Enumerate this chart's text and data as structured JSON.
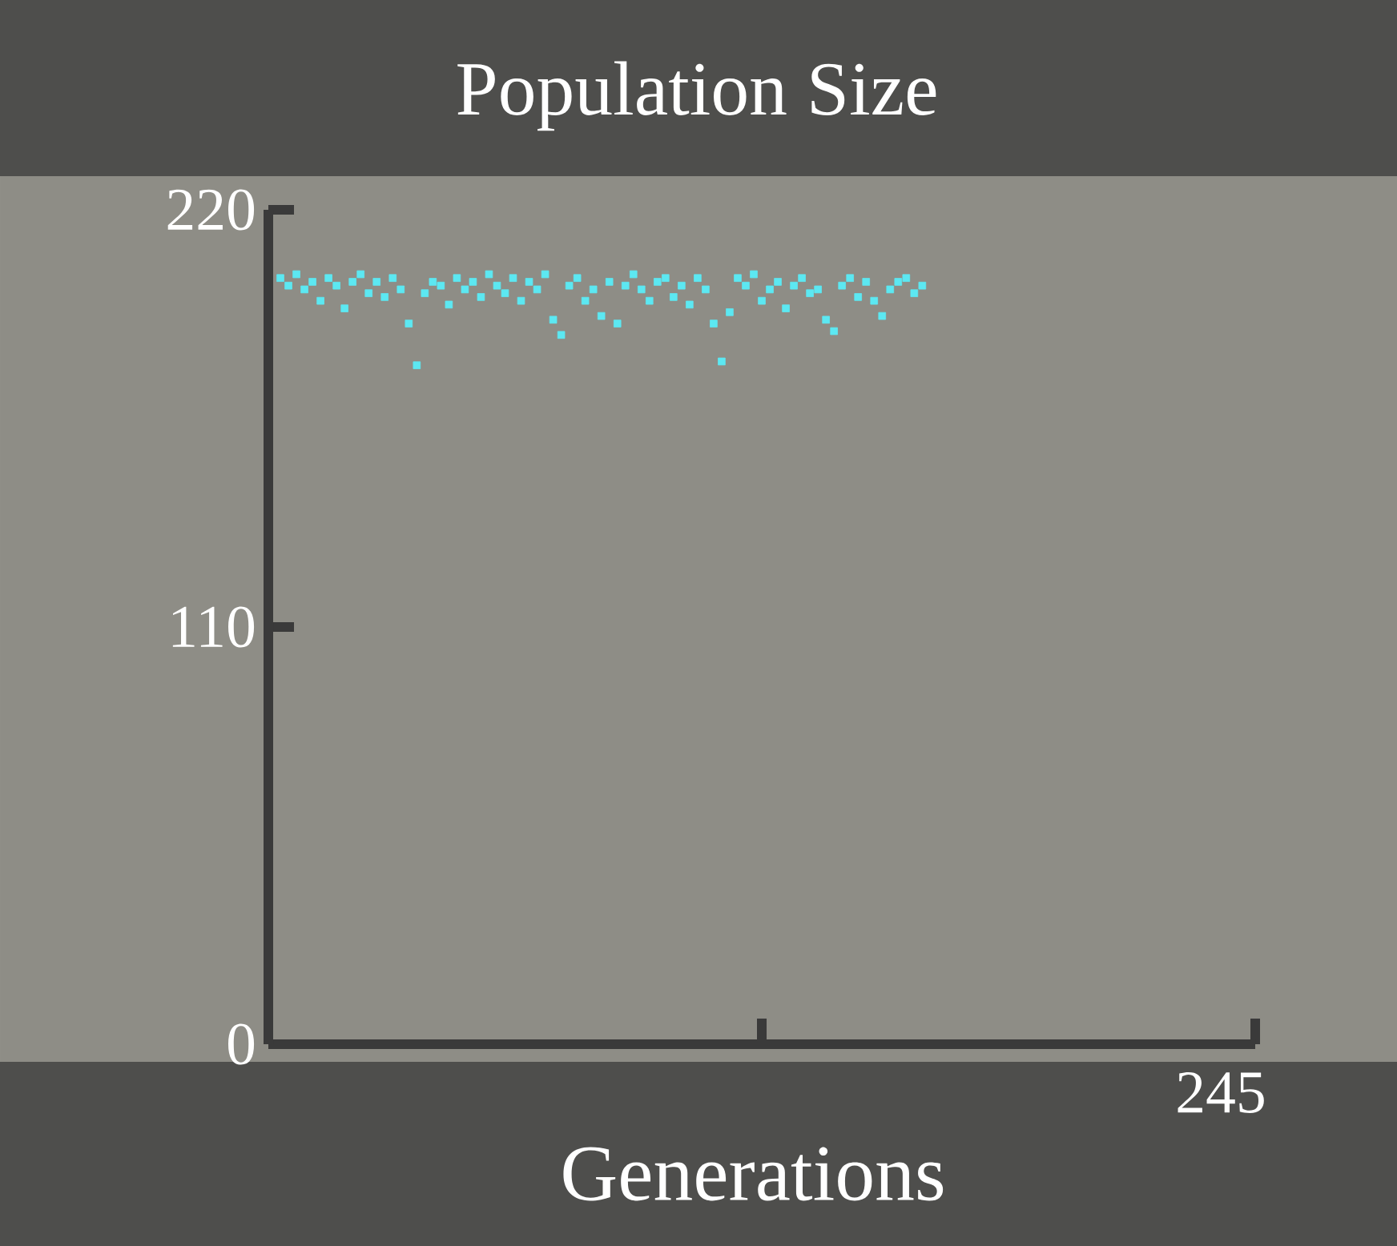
{
  "chart_data": {
    "type": "scatter",
    "title": "Population Size",
    "xlabel": "Generations",
    "annotations": [
      "245"
    ],
    "categories": [
      null,
      null,
      null,
      null,
      null,
      null,
      null,
      null,
      null,
      null,
      null,
      null,
      null,
      null,
      null,
      null,
      null,
      null,
      null,
      null,
      null,
      null,
      null,
      null,
      null,
      null,
      null,
      null,
      null,
      null,
      null,
      null,
      null,
      null,
      null,
      null,
      null,
      null,
      null,
      null,
      null,
      null,
      null,
      null,
      null,
      null,
      null,
      null,
      null,
      null,
      null,
      null,
      null,
      null,
      null,
      null,
      null,
      null,
      null,
      null,
      null,
      null,
      null,
      null,
      null,
      null,
      null,
      null,
      null,
      null,
      null,
      null,
      null,
      null,
      null,
      null,
      null,
      null,
      null,
      null,
      null,
      null,
      null,
      null,
      null,
      null,
      null,
      null,
      null,
      null,
      null,
      null,
      null,
      null,
      null,
      null,
      null,
      null,
      null,
      null,
      null,
      null,
      null,
      null,
      null,
      null,
      null,
      null,
      null,
      null,
      null,
      null,
      null,
      null,
      null,
      null,
      null,
      null,
      null,
      null,
      null,
      null,
      null
    ],
    "ylim": [
      0,
      220
    ],
    "yticks": [
      0,
      110,
      220
    ],
    "marker": "square",
    "series": [
      {
        "color": "#5ce8f2",
        "values": [
          null,
          202,
          200,
          203,
          199,
          201,
          196,
          202,
          200,
          194,
          201,
          203,
          198,
          201,
          197,
          202,
          199,
          190,
          179,
          198,
          201,
          200,
          195,
          202,
          199,
          201,
          197,
          203,
          200,
          198,
          202,
          196,
          201,
          199,
          203,
          191,
          187,
          200,
          202,
          196,
          199,
          192,
          201,
          190,
          200,
          203,
          199,
          196,
          201,
          202,
          197,
          200,
          195,
          202,
          199,
          190,
          180,
          193,
          202,
          200,
          203,
          196,
          199,
          201,
          194,
          200,
          202,
          198,
          199,
          191,
          188,
          200,
          202,
          197,
          201,
          196,
          192,
          199,
          201,
          202,
          198,
          200,
          null,
          null,
          null,
          null,
          null,
          null,
          null,
          null,
          null,
          null,
          null,
          null,
          null,
          null,
          null,
          null,
          null,
          null,
          null,
          null,
          null,
          null,
          null,
          null,
          null,
          null,
          null,
          null,
          null,
          null,
          null,
          null,
          null,
          null,
          null,
          null,
          null,
          null,
          null,
          null,
          null
        ]
      }
    ]
  }
}
